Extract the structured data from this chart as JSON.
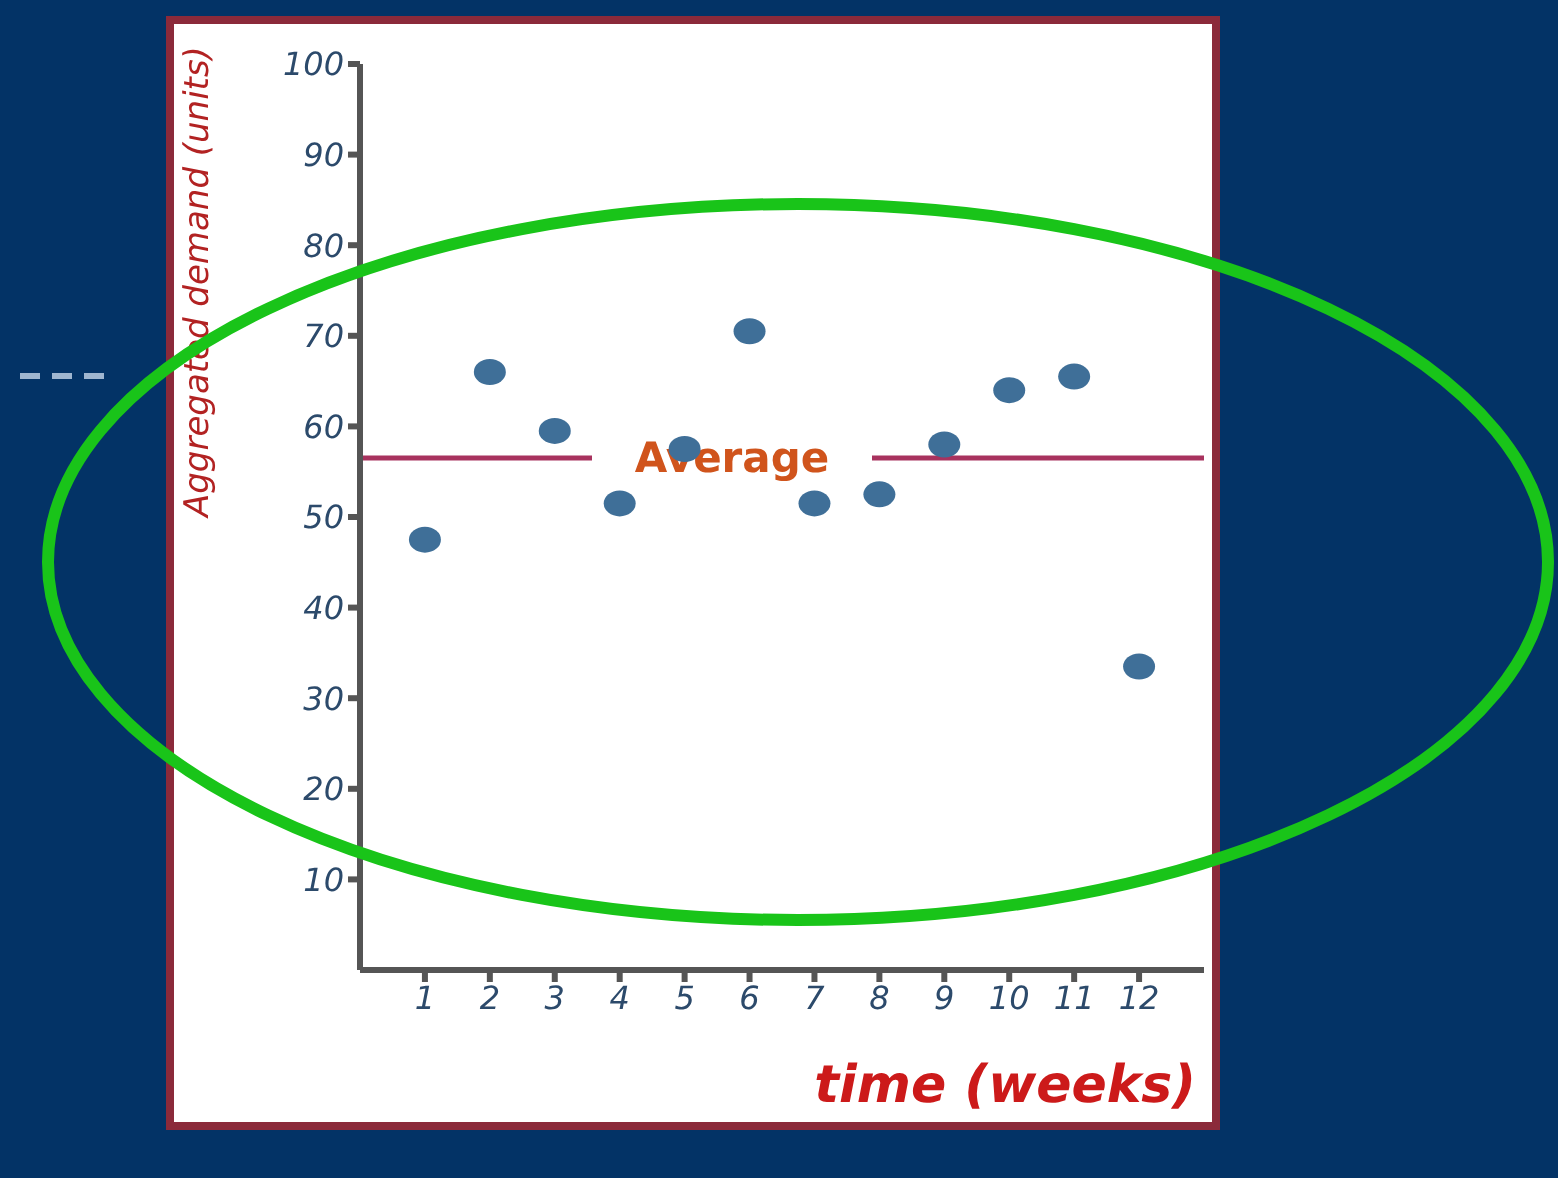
{
  "chart_data": {
    "type": "scatter",
    "xlabel": "time (weeks)",
    "ylabel": "Aggregated demand (units)",
    "x": [
      1,
      2,
      3,
      4,
      5,
      6,
      7,
      8,
      9,
      10,
      11,
      12
    ],
    "values": [
      47.5,
      66,
      59.5,
      51.5,
      57.5,
      70.5,
      51.5,
      52.5,
      58,
      64,
      65.5,
      33.5
    ],
    "color": "#3f6f98",
    "marker": "circle",
    "xlim": [
      0,
      13
    ],
    "xticks": [
      1,
      2,
      3,
      4,
      5,
      6,
      7,
      8,
      9,
      10,
      11,
      12
    ],
    "ylim": [
      0,
      100
    ],
    "yticks": [
      10,
      20,
      30,
      40,
      50,
      60,
      70,
      80,
      90,
      100
    ],
    "ref_lines": [
      {
        "axis": "y",
        "value": 56.5,
        "label": "Average",
        "color": "#a8325e"
      }
    ],
    "grid": false,
    "legend": false
  }
}
